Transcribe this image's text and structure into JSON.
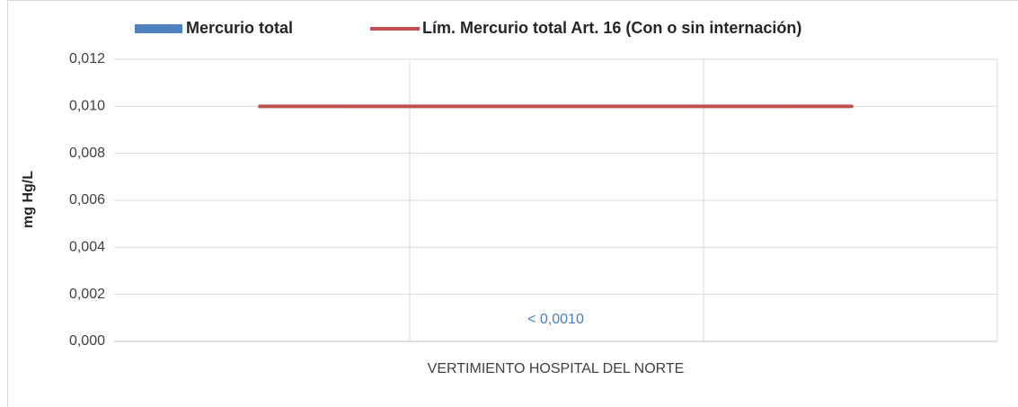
{
  "chart_data": {
    "type": "bar",
    "categories": [
      "VERTIMIENTO HOSPITAL DEL NORTE"
    ],
    "series": [
      {
        "name": "Mercurio total",
        "color": "#4f81bd",
        "values": [
          0
        ],
        "value_labels": [
          "< 0,0010"
        ]
      },
      {
        "name": "Lím. Mercurio total Art. 16 (Con o sin internación)",
        "color": "#c0504d",
        "type": "line",
        "values": [
          0.01
        ]
      }
    ],
    "y_label": "mg Hg/L",
    "ylim": [
      0,
      0.012
    ],
    "yticks": [
      {
        "value": 0,
        "label": "0,000"
      },
      {
        "value": 0.002,
        "label": "0,002"
      },
      {
        "value": 0.004,
        "label": "0,004"
      },
      {
        "value": 0.006,
        "label": "0,006"
      },
      {
        "value": 0.008,
        "label": "0,008"
      },
      {
        "value": 0.01,
        "label": "0,010"
      },
      {
        "value": 0.012,
        "label": "0,012"
      }
    ],
    "grid": true,
    "legend": "top",
    "value_label_color": "#4a7ebb"
  }
}
